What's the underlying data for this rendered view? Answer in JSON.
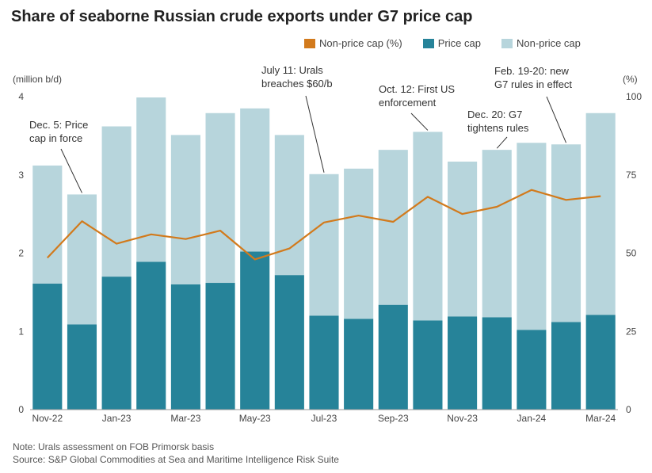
{
  "title": "Share of seaborne Russian crude exports under G7 price cap",
  "units": {
    "left": "(million b/d)",
    "right": "(%)"
  },
  "colors": {
    "price_cap": "#268399",
    "non_price_cap": "#b7d5dc",
    "line": "#d27a1c",
    "axis": "#999999"
  },
  "legend": [
    {
      "label": "Non-price cap (%)",
      "color": "#d27a1c"
    },
    {
      "label": "Price cap",
      "color": "#268399"
    },
    {
      "label": "Non-price cap",
      "color": "#b7d5dc"
    }
  ],
  "footer": {
    "note": "Note: Urals assessment on FOB Primorsk basis",
    "source": "Source: S&P Global Commodities at Sea and Maritime Intelligence Risk Suite"
  },
  "chart_data": {
    "type": "bar",
    "stacked": true,
    "title": "Share of seaborne Russian crude exports under G7 price cap",
    "categories": [
      "Nov-22",
      "Dec-22",
      "Jan-23",
      "Feb-23",
      "Mar-23",
      "Apr-23",
      "May-23",
      "Jun-23",
      "Jul-23",
      "Aug-23",
      "Sep-23",
      "Oct-23",
      "Nov-23",
      "Dec-23",
      "Jan-24",
      "Feb-24",
      "Mar-24"
    ],
    "x_tick_labels": [
      "Nov-22",
      "",
      "Jan-23",
      "",
      "Mar-23",
      "",
      "May-23",
      "",
      "Jul-23",
      "",
      "Sep-23",
      "",
      "Nov-23",
      "",
      "Jan-24",
      "",
      "Mar-24"
    ],
    "series": [
      {
        "name": "Price cap",
        "axis": "left",
        "values": [
          1.61,
          1.09,
          1.7,
          1.89,
          1.6,
          1.62,
          2.02,
          1.72,
          1.2,
          1.16,
          1.34,
          1.14,
          1.19,
          1.18,
          1.02,
          1.12,
          1.21
        ]
      },
      {
        "name": "Non-price cap",
        "axis": "left",
        "values": [
          1.51,
          1.66,
          1.92,
          2.1,
          1.91,
          2.17,
          1.83,
          1.79,
          1.81,
          1.92,
          1.98,
          2.41,
          1.98,
          2.14,
          2.39,
          2.27,
          2.58
        ]
      },
      {
        "name": "Non-price cap (%)",
        "axis": "right",
        "type": "line",
        "values": [
          48.5,
          60.2,
          53.0,
          56.0,
          54.5,
          57.2,
          48.0,
          51.5,
          59.8,
          62.0,
          60.0,
          68.0,
          62.5,
          64.8,
          70.2,
          67.0,
          68.2
        ]
      }
    ],
    "ylim_left": [
      0,
      4
    ],
    "yticks_left": [
      0,
      1,
      2,
      3,
      4
    ],
    "ylim_right": [
      0,
      100
    ],
    "yticks_right": [
      0,
      25,
      50,
      75,
      100
    ],
    "grid": false,
    "legend_position": "top-right",
    "annotations": [
      {
        "text": [
          "Dec. 5: Price",
          "cap in force"
        ],
        "category": "Dec-22",
        "at_value": 2.75
      },
      {
        "text": [
          "July 11: Urals",
          "breaches $60/b"
        ],
        "category": "Jul-23",
        "at_value": 3.01
      },
      {
        "text": [
          "Oct. 12: First US",
          "enforcement"
        ],
        "category": "Oct-23",
        "at_value": 3.55
      },
      {
        "text": [
          "Dec. 20: G7",
          "tightens rules"
        ],
        "category": "Dec-23",
        "at_value": 3.32
      },
      {
        "text": [
          "Feb. 19-20: new",
          "G7 rules in effect"
        ],
        "category": "Feb-24",
        "at_value": 3.39
      }
    ]
  }
}
